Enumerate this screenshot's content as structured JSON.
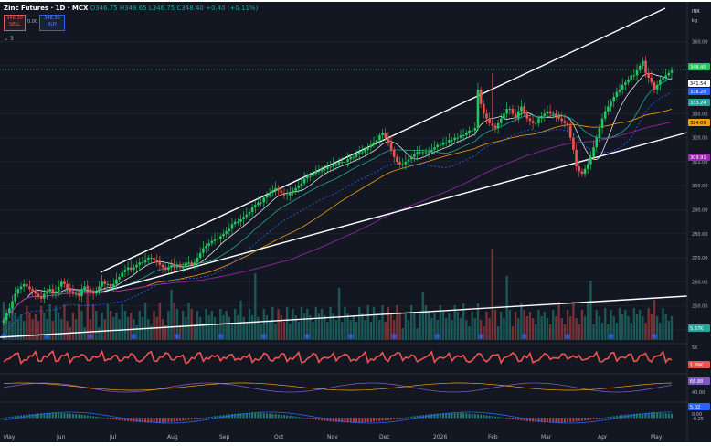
{
  "header": {
    "symbol": "Zinc Futures · 1D · MCX",
    "ohlc_text": "O346.75 H349.65 L346.75 C348.40 +0.40 (+0.11%)",
    "sell_price": "348.30",
    "sell_label": "SELL",
    "spread": "0.00",
    "buy_price": "348.30",
    "buy_label": "BUY",
    "collapse_count": "3"
  },
  "axis": {
    "currency": "INR",
    "unit": "kg",
    "price_ticks": [
      "360.00",
      "350.00",
      "340.00",
      "330.00",
      "320.00",
      "310.00",
      "300.00",
      "290.00",
      "280.00",
      "270.00",
      "260.00",
      "250.00",
      "240.00"
    ],
    "osc1_ticks": [
      "5K"
    ],
    "osc2_ticks": [
      "40.00"
    ],
    "osc3_ticks": [
      "0.00",
      "-0.25"
    ]
  },
  "price_badges": [
    {
      "text": "348.40",
      "color": "#22c55e"
    },
    {
      "text": "341.54",
      "color": "#ffffff"
    },
    {
      "text": "338.20",
      "color": "#2962ff"
    },
    {
      "text": "333.24",
      "color": "#26a69a"
    },
    {
      "text": "324.09",
      "color": "#f59e0b"
    },
    {
      "text": "309.91",
      "color": "#9c27b0"
    },
    {
      "text": "5.37K",
      "color": "#26a69a"
    }
  ],
  "osc_badges": [
    {
      "text": "1.99K",
      "color": "#ef5350"
    },
    {
      "text": "66.88",
      "color": "#7e57c2"
    },
    {
      "text": "5.02",
      "color": "#2962ff"
    }
  ],
  "x_axis_labels": [
    "May",
    "Jun",
    "Jul",
    "Aug",
    "Sep",
    "Oct",
    "Nov",
    "Dec",
    "2026",
    "Feb",
    "Mar",
    "Apr",
    "May"
  ],
  "colors": {
    "up": "#22c55e",
    "down": "#ef5350",
    "background": "#131722",
    "grid": "#1e222d"
  },
  "chart_data": {
    "type": "candlestick",
    "ylim": [
      235,
      372
    ],
    "closes": [
      244,
      247,
      249,
      252,
      255,
      257,
      258,
      259,
      258,
      257,
      256,
      255,
      254,
      253,
      255,
      256,
      257,
      255,
      256,
      258,
      260,
      259,
      257,
      256,
      255,
      255,
      254,
      257,
      258,
      257,
      256,
      255,
      256,
      258,
      260,
      259,
      259,
      258,
      259,
      261,
      262,
      264,
      265,
      266,
      265,
      266,
      267,
      268,
      268,
      269,
      270,
      270,
      269,
      268,
      267,
      266,
      265,
      266,
      267,
      266,
      267,
      266,
      266,
      268,
      268,
      267,
      268,
      270,
      272,
      274,
      275,
      276,
      277,
      278,
      278,
      279,
      280,
      281,
      282,
      284,
      285,
      285,
      286,
      287,
      288,
      289,
      291,
      292,
      293,
      293,
      295,
      296,
      297,
      298,
      299,
      298,
      297,
      296,
      296,
      297,
      298,
      299,
      300,
      301,
      303,
      304,
      304,
      305,
      306,
      306,
      307,
      307,
      308,
      308,
      309,
      309,
      310,
      310,
      310,
      311,
      312,
      312,
      313,
      314,
      314,
      315,
      316,
      317,
      318,
      319,
      321,
      322,
      320,
      318,
      315,
      312,
      310,
      309,
      309,
      310,
      311,
      312,
      313,
      314,
      314,
      314,
      314,
      314,
      315,
      316,
      317,
      317,
      318,
      318,
      319,
      319,
      320,
      320,
      321,
      321,
      322,
      323,
      323,
      324,
      340,
      334,
      330,
      328,
      326,
      325,
      324,
      326,
      328,
      330,
      332,
      332,
      330,
      328,
      331,
      333,
      330,
      328,
      327,
      326,
      326,
      328,
      329,
      330,
      331,
      330,
      330,
      329,
      328,
      327,
      326,
      325,
      320,
      315,
      308,
      306,
      305,
      307,
      309,
      312,
      316,
      320,
      324,
      328,
      331,
      333,
      335,
      337,
      339,
      340,
      342,
      343,
      344,
      346,
      346,
      348,
      350,
      352,
      347,
      345,
      343,
      340,
      342,
      344,
      345,
      346,
      347,
      348
    ]
  }
}
